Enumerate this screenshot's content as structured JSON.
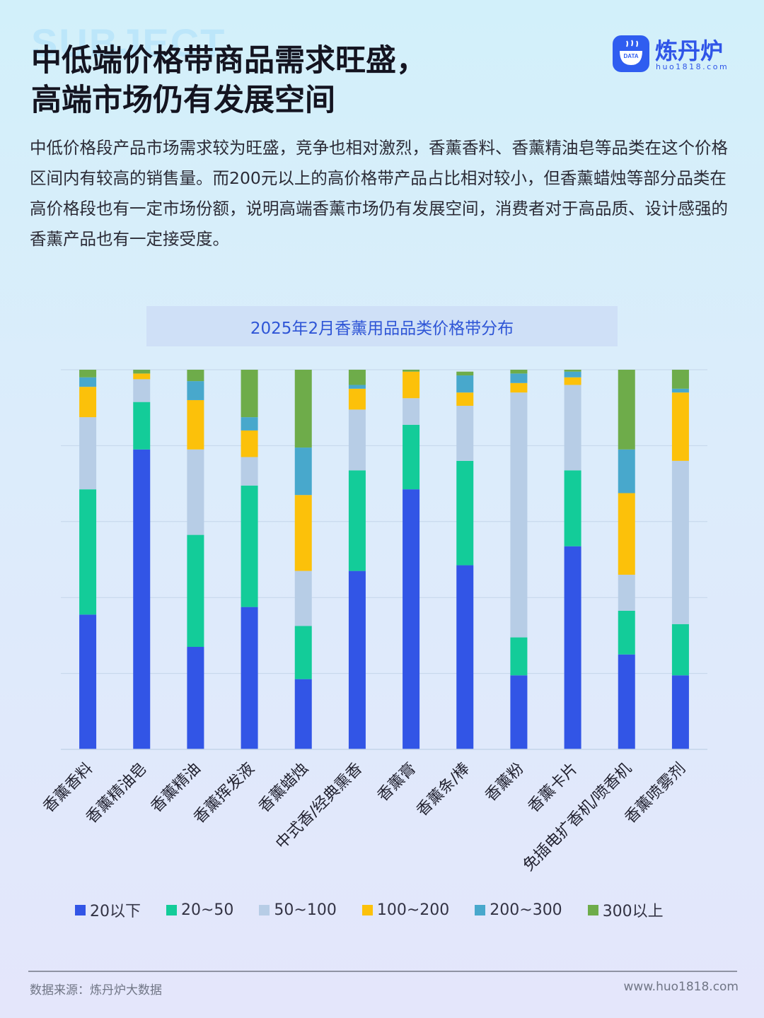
{
  "header": {
    "watermark": "SUBJECT",
    "title_line1": "中低端价格带商品需求旺盛，",
    "title_line2": "高端市场仍有发展空间"
  },
  "logo": {
    "badge_text": "DATA",
    "name": "炼丹炉",
    "url": "huo1818.com",
    "color": "#2f5df0"
  },
  "description": "中低价格段产品市场需求较为旺盛，竞争也相对激烈，香薰香料、香薰精油皂等品类在这个价格区间内有较高的销售量。而200元以上的高价格带产品占比相对较小，但香薰蜡烛等部分品类在高价格段也有一定市场份额，说明高端香薰市场仍有发展空间，消费者对于高品质、设计感强的香薰产品也有一定接受度。",
  "chart_data": {
    "type": "bar",
    "stacked": true,
    "normalized": true,
    "title": "2025年2月香薰用品品类价格带分布",
    "ylim": [
      0,
      100
    ],
    "grid": true,
    "legend_position": "bottom",
    "categories": [
      "香薰香料",
      "香薰精油皂",
      "香薰精油",
      "香薰挥发液",
      "香薰蜡烛",
      "中式香/经典熏香",
      "香薰膏",
      "香薰条/棒",
      "香薰粉",
      "香薰卡片",
      "免插电扩香机/喷香机",
      "香薰喷雾剂"
    ],
    "series": [
      {
        "name": "20以下",
        "color": "#3255e6",
        "values": [
          35.5,
          79,
          27,
          37.5,
          18.5,
          47,
          68.5,
          48.5,
          19.5,
          53.5,
          25,
          19.5
        ]
      },
      {
        "name": "20~50",
        "color": "#13cc99",
        "values": [
          33,
          12.5,
          29.5,
          32,
          14,
          26.5,
          17,
          27.5,
          10,
          20,
          11.5,
          13.5
        ]
      },
      {
        "name": "50~100",
        "color": "#b7cde6",
        "values": [
          19,
          6,
          22.5,
          7.5,
          14.5,
          16,
          7,
          14.5,
          64.5,
          22.5,
          9.5,
          43
        ]
      },
      {
        "name": "100~200",
        "color": "#fcc10a",
        "values": [
          8,
          1.5,
          13,
          7,
          20,
          5.5,
          7,
          3.5,
          2.5,
          2,
          21.5,
          18
        ]
      },
      {
        "name": "200~300",
        "color": "#48a8cc",
        "values": [
          2.5,
          0,
          5,
          3.5,
          12.5,
          1,
          0,
          4.5,
          2.5,
          1.5,
          11.5,
          1
        ]
      },
      {
        "name": "300以上",
        "color": "#6eac4a",
        "values": [
          2,
          1,
          3,
          12.5,
          20.5,
          4,
          0.5,
          1,
          1,
          0.5,
          21,
          5
        ]
      }
    ]
  },
  "footer": {
    "source": "数据来源：炼丹炉大数据",
    "website": "www.huo1818.com"
  }
}
